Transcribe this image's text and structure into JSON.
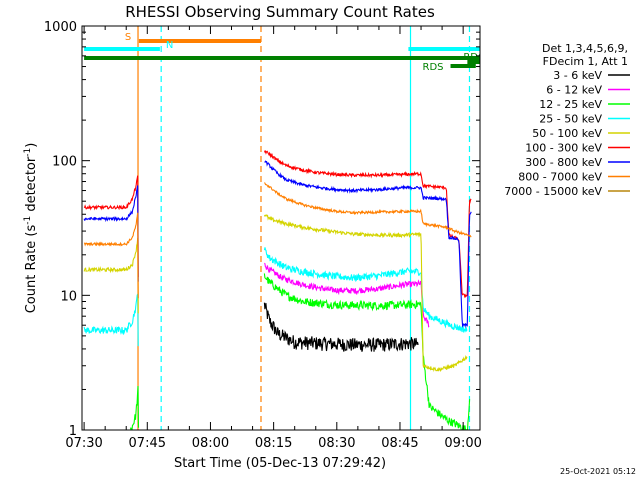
{
  "chart_data": {
    "type": "line",
    "title": "RHESSI Observing Summary Count Rates",
    "xlabel": "Start Time (05-Dec-13 07:29:42)",
    "ylabel_main": "Count Rate (s",
    "ylabel_sup1": "-1",
    "ylabel_mid": " detector",
    "ylabel_sup2": "-1",
    "ylabel_end": ")",
    "timestamp": "25-Oct-2021 05:12",
    "x_ticks": [
      "07:30",
      "07:45",
      "08:00",
      "08:15",
      "08:30",
      "08:45",
      "09:00"
    ],
    "y_ticks": [
      "1",
      "10",
      "100",
      "1000"
    ],
    "xlim_minutes": [
      -0.5,
      94
    ],
    "ylim": [
      1,
      1000
    ],
    "yscale": "log",
    "legend_header": [
      "Det 1,3,4,5,6,9,",
      "FDecim 1, Att 1"
    ],
    "legend": [
      {
        "label": "3 - 6 keV",
        "color": "#000000"
      },
      {
        "label": "6 - 12 keV",
        "color": "#ff00ff"
      },
      {
        "label": "12 - 25 keV",
        "color": "#00ff00"
      },
      {
        "label": "25 - 50 keV",
        "color": "#00ffff"
      },
      {
        "label": "50 - 100 keV",
        "color": "#d4d400"
      },
      {
        "label": "100 - 300 keV",
        "color": "#ff0000"
      },
      {
        "label": "300 - 800 keV",
        "color": "#0000ff"
      },
      {
        "label": "800 - 7000 keV",
        "color": "#ff7f00"
      },
      {
        "label": "7000 - 15000 keV",
        "color": "#b8860b"
      }
    ],
    "flags": [
      {
        "label": "S",
        "color": "#ff7f00",
        "start": 13,
        "end": 42
      },
      {
        "label": "N",
        "color": "#00ffff",
        "start": 0,
        "end": 18
      },
      {
        "label": "N",
        "color": "#00ffff",
        "start": 77,
        "end": 94
      },
      {
        "label": "",
        "color": "#008000",
        "start": 0,
        "end": 94
      },
      {
        "label": "RDS",
        "color": "#008000",
        "start": 87,
        "end": 93
      },
      {
        "label": "RDO",
        "color": "#008000",
        "start": 91,
        "end": 94
      }
    ],
    "vlines": [
      {
        "t": 12.8,
        "color": "#ff7f00",
        "style": "solid"
      },
      {
        "t": 18.3,
        "color": "#00ffff",
        "style": "dashed"
      },
      {
        "t": 42.0,
        "color": "#ff7f00",
        "style": "dashed"
      },
      {
        "t": 77.5,
        "color": "#00ffff",
        "style": "solid"
      },
      {
        "t": 91.5,
        "color": "#00ffff",
        "style": "dashed"
      }
    ],
    "series": [
      {
        "name": "3 - 6 keV",
        "color": "#000000",
        "noise": 0.12,
        "points": [
          [
            42.8,
            8.5
          ],
          [
            44,
            6.5
          ],
          [
            46,
            5.2
          ],
          [
            50,
            4.5
          ],
          [
            56,
            4.4
          ],
          [
            64,
            4.3
          ],
          [
            70,
            4.3
          ],
          [
            77,
            4.4
          ],
          [
            79.5,
            4.3
          ]
        ]
      },
      {
        "name": "6 - 12 keV",
        "color": "#ff00ff",
        "noise": 0.05,
        "points": [
          [
            42.8,
            17
          ],
          [
            44,
            15.5
          ],
          [
            47,
            13.5
          ],
          [
            52,
            12
          ],
          [
            58,
            11
          ],
          [
            64,
            10.8
          ],
          [
            70,
            11.2
          ],
          [
            76,
            12
          ],
          [
            80,
            12.2
          ],
          [
            80.5,
            7
          ],
          [
            82,
            6
          ]
        ]
      },
      {
        "name": "12 - 25 keV",
        "color": "#00ff00",
        "noise": 0.07,
        "points": [
          [
            11,
            1.0
          ],
          [
            11.6,
            1.1
          ],
          [
            12.3,
            1.3
          ],
          [
            12.8,
            2.0
          ],
          [
            12.9,
            1.0
          ],
          [
            42.8,
            14
          ],
          [
            44,
            12.5
          ],
          [
            48,
            10
          ],
          [
            52,
            9
          ],
          [
            60,
            8.5
          ],
          [
            70,
            8.4
          ],
          [
            76,
            8.5
          ],
          [
            80,
            8.6
          ],
          [
            80.5,
            3.5
          ],
          [
            82,
            1.5
          ],
          [
            86,
            1.2
          ],
          [
            91,
            1.0
          ],
          [
            91.4,
            1.5
          ],
          [
            91.6,
            1.8
          ]
        ]
      },
      {
        "name": "25 - 50 keV",
        "color": "#00ffff",
        "noise": 0.06,
        "points": [
          [
            0,
            5.5
          ],
          [
            10,
            5.5
          ],
          [
            11.5,
            6.5
          ],
          [
            12.4,
            8.5
          ],
          [
            12.8,
            11.5
          ],
          [
            12.9,
            1.0
          ],
          [
            42.8,
            22
          ],
          [
            44,
            19
          ],
          [
            48,
            16
          ],
          [
            52,
            15
          ],
          [
            58,
            14
          ],
          [
            64,
            13.5
          ],
          [
            70,
            14
          ],
          [
            76,
            15
          ],
          [
            80,
            15
          ],
          [
            80.5,
            8
          ],
          [
            82,
            7
          ],
          [
            87,
            6
          ],
          [
            91,
            5.5
          ]
        ]
      },
      {
        "name": "50 - 100 keV",
        "color": "#d4d400",
        "noise": 0.03,
        "points": [
          [
            0,
            15.5
          ],
          [
            10,
            15.5
          ],
          [
            11.5,
            17
          ],
          [
            12.4,
            22
          ],
          [
            12.8,
            28
          ],
          [
            12.9,
            1.0
          ],
          [
            42.8,
            40
          ],
          [
            44,
            37
          ],
          [
            48,
            34
          ],
          [
            52,
            32
          ],
          [
            58,
            30
          ],
          [
            64,
            28.5
          ],
          [
            70,
            28
          ],
          [
            76,
            28
          ],
          [
            80,
            28.5
          ],
          [
            80.5,
            3
          ],
          [
            84,
            2.8
          ],
          [
            88,
            3
          ],
          [
            91,
            3.5
          ]
        ]
      },
      {
        "name": "100 - 300 keV",
        "color": "#ff0000",
        "noise": 0.025,
        "points": [
          [
            0,
            45
          ],
          [
            10,
            45
          ],
          [
            11.5,
            52
          ],
          [
            12.3,
            65
          ],
          [
            12.8,
            78
          ],
          [
            12.9,
            1.0
          ],
          [
            42.8,
            118
          ],
          [
            44,
            112
          ],
          [
            46,
            100
          ],
          [
            48,
            92
          ],
          [
            52,
            85
          ],
          [
            56,
            81
          ],
          [
            60,
            79
          ],
          [
            64,
            78
          ],
          [
            70,
            78
          ],
          [
            76,
            79
          ],
          [
            80,
            80
          ],
          [
            80.5,
            65
          ],
          [
            86,
            63
          ],
          [
            86.6,
            28
          ],
          [
            89,
            26
          ],
          [
            89.8,
            10
          ],
          [
            91,
            10
          ],
          [
            91.5,
            50
          ],
          [
            92,
            52
          ]
        ]
      },
      {
        "name": "300 - 800 keV",
        "color": "#0000ff",
        "noise": 0.025,
        "points": [
          [
            0,
            37
          ],
          [
            10,
            37
          ],
          [
            11.5,
            42
          ],
          [
            12.3,
            55
          ],
          [
            12.8,
            66
          ],
          [
            12.9,
            1.0
          ],
          [
            42.8,
            100
          ],
          [
            44,
            92
          ],
          [
            46,
            80
          ],
          [
            48,
            72
          ],
          [
            52,
            66
          ],
          [
            56,
            63
          ],
          [
            60,
            61
          ],
          [
            64,
            60
          ],
          [
            70,
            61
          ],
          [
            76,
            63
          ],
          [
            80,
            63
          ],
          [
            80.5,
            53
          ],
          [
            86,
            52
          ],
          [
            86.6,
            27
          ],
          [
            89,
            26
          ],
          [
            89.8,
            6
          ],
          [
            91,
            6
          ],
          [
            91.5,
            40
          ],
          [
            92,
            42
          ]
        ]
      },
      {
        "name": "800 - 7000 keV",
        "color": "#ff7f00",
        "noise": 0.02,
        "points": [
          [
            0,
            24
          ],
          [
            10,
            24
          ],
          [
            11.5,
            27
          ],
          [
            12.3,
            33
          ],
          [
            12.8,
            42
          ],
          [
            12.9,
            1.0
          ],
          [
            42.8,
            68
          ],
          [
            44,
            64
          ],
          [
            46,
            57
          ],
          [
            48,
            52
          ],
          [
            52,
            47
          ],
          [
            56,
            44
          ],
          [
            60,
            42
          ],
          [
            64,
            41
          ],
          [
            70,
            41.5
          ],
          [
            76,
            42
          ],
          [
            80,
            42
          ],
          [
            80.5,
            34
          ],
          [
            86,
            32
          ],
          [
            88,
            30
          ],
          [
            91,
            28
          ],
          [
            92,
            27
          ]
        ]
      }
    ]
  }
}
